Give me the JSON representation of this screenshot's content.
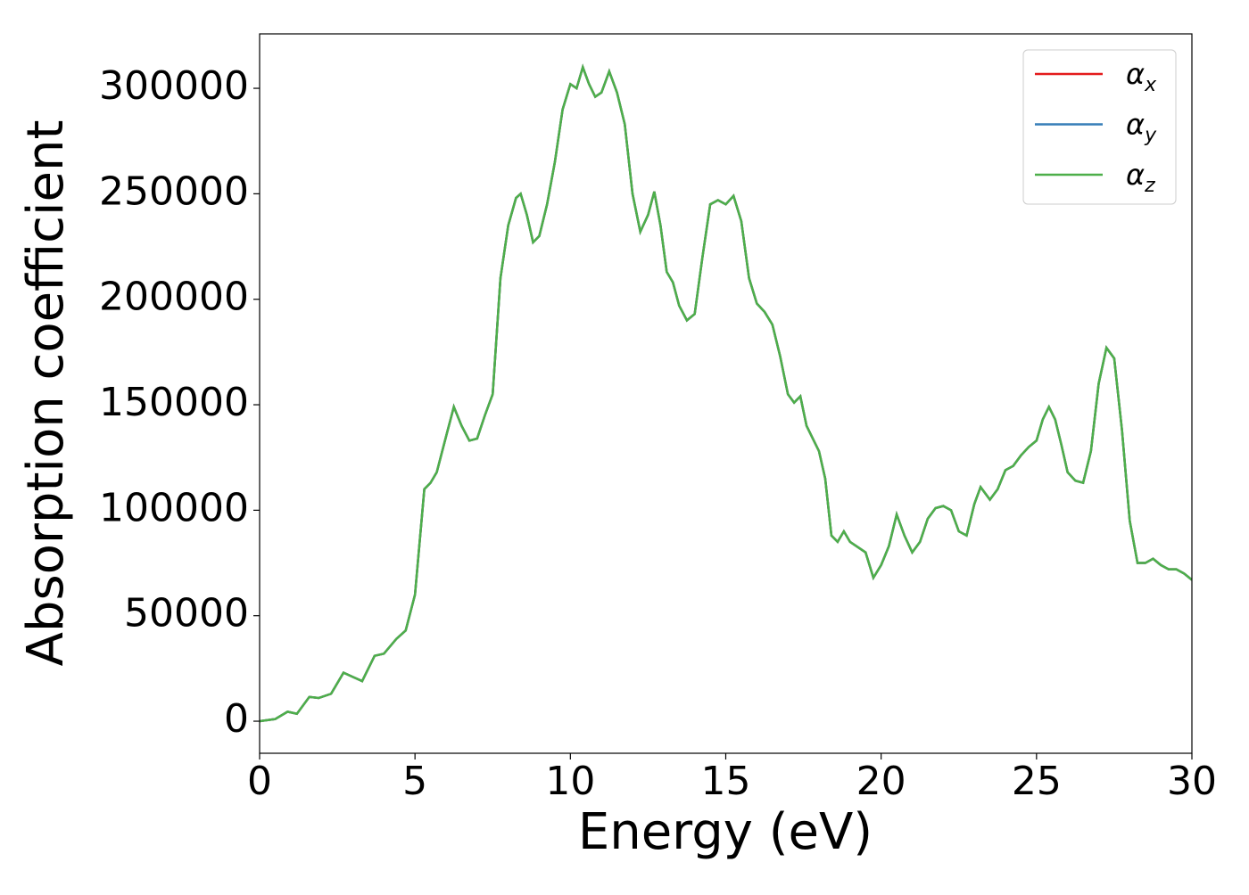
{
  "chart_data": {
    "type": "line",
    "xlabel": "Energy (eV)",
    "ylabel": "Absorption coefficient",
    "x": [
      0,
      0.5,
      0.9,
      1.2,
      1.6,
      1.9,
      2.3,
      2.7,
      3.0,
      3.3,
      3.7,
      4.0,
      4.4,
      4.7,
      5.0,
      5.3,
      5.5,
      5.7,
      6.0,
      6.25,
      6.5,
      6.75,
      7.0,
      7.25,
      7.5,
      7.75,
      8.0,
      8.25,
      8.4,
      8.6,
      8.8,
      9.0,
      9.25,
      9.5,
      9.75,
      10.0,
      10.2,
      10.4,
      10.6,
      10.8,
      11.0,
      11.25,
      11.5,
      11.75,
      12.0,
      12.25,
      12.5,
      12.7,
      12.9,
      13.1,
      13.3,
      13.5,
      13.75,
      14.0,
      14.25,
      14.5,
      14.75,
      15.0,
      15.25,
      15.5,
      15.75,
      16.0,
      16.25,
      16.5,
      16.75,
      17.0,
      17.2,
      17.4,
      17.6,
      17.8,
      18.0,
      18.2,
      18.4,
      18.6,
      18.8,
      19.0,
      19.3,
      19.5,
      19.75,
      20.0,
      20.25,
      20.5,
      20.75,
      21.0,
      21.25,
      21.5,
      21.75,
      22.0,
      22.25,
      22.5,
      22.75,
      23.0,
      23.2,
      23.5,
      23.75,
      24.0,
      24.25,
      24.5,
      24.75,
      25.0,
      25.2,
      25.4,
      25.6,
      25.8,
      26.0,
      26.25,
      26.5,
      26.75,
      27.0,
      27.25,
      27.5,
      27.75,
      28.0,
      28.25,
      28.5,
      28.75,
      29.0,
      29.25,
      29.5,
      29.75,
      30.0
    ],
    "series": [
      {
        "name": "αx",
        "color": "#e41a1c",
        "values": [
          0,
          1000,
          4500,
          3500,
          11500,
          11000,
          13000,
          23000,
          21000,
          19000,
          31000,
          32000,
          39000,
          43000,
          60000,
          110000,
          113000,
          118000,
          135000,
          149000,
          140000,
          133000,
          134000,
          145000,
          155000,
          210000,
          235000,
          248000,
          250000,
          240000,
          227000,
          230000,
          245000,
          265000,
          290000,
          302000,
          300000,
          310000,
          302000,
          296000,
          298000,
          308000,
          298000,
          283000,
          250000,
          232000,
          240000,
          251000,
          235000,
          213000,
          208000,
          197000,
          190000,
          193000,
          220000,
          245000,
          247000,
          245000,
          249000,
          237000,
          210000,
          198000,
          194000,
          188000,
          173000,
          155000,
          151000,
          154000,
          140000,
          134000,
          128000,
          115000,
          88000,
          85000,
          90000,
          85000,
          82000,
          80000,
          68000,
          74000,
          83000,
          98000,
          88000,
          80000,
          85000,
          96000,
          101000,
          102000,
          100000,
          90000,
          88000,
          103000,
          111000,
          105000,
          110000,
          119000,
          121000,
          126000,
          130000,
          133000,
          143000,
          149000,
          143000,
          131000,
          118000,
          114000,
          113000,
          128000,
          160000,
          177000,
          172000,
          138000,
          95000,
          75000,
          75000,
          77000,
          74000,
          72000,
          72000,
          70000,
          67000
        ]
      },
      {
        "name": "αy",
        "color": "#377eb8",
        "values": [
          0,
          1000,
          4500,
          3500,
          11500,
          11000,
          13000,
          23000,
          21000,
          19000,
          31000,
          32000,
          39000,
          43000,
          60000,
          110000,
          113000,
          118000,
          135000,
          149000,
          140000,
          133000,
          134000,
          145000,
          155000,
          210000,
          235000,
          248000,
          250000,
          240000,
          227000,
          230000,
          245000,
          265000,
          290000,
          302000,
          300000,
          310000,
          302000,
          296000,
          298000,
          308000,
          298000,
          283000,
          250000,
          232000,
          240000,
          251000,
          235000,
          213000,
          208000,
          197000,
          190000,
          193000,
          220000,
          245000,
          247000,
          245000,
          249000,
          237000,
          210000,
          198000,
          194000,
          188000,
          173000,
          155000,
          151000,
          154000,
          140000,
          134000,
          128000,
          115000,
          88000,
          85000,
          90000,
          85000,
          82000,
          80000,
          68000,
          74000,
          83000,
          98000,
          88000,
          80000,
          85000,
          96000,
          101000,
          102000,
          100000,
          90000,
          88000,
          103000,
          111000,
          105000,
          110000,
          119000,
          121000,
          126000,
          130000,
          133000,
          143000,
          149000,
          143000,
          131000,
          118000,
          114000,
          113000,
          128000,
          160000,
          177000,
          172000,
          138000,
          95000,
          75000,
          75000,
          77000,
          74000,
          72000,
          72000,
          70000,
          67000
        ]
      },
      {
        "name": "αz",
        "color": "#4daf4a",
        "values": [
          0,
          1000,
          4500,
          3500,
          11500,
          11000,
          13000,
          23000,
          21000,
          19000,
          31000,
          32000,
          39000,
          43000,
          60000,
          110000,
          113000,
          118000,
          135000,
          149000,
          140000,
          133000,
          134000,
          145000,
          155000,
          210000,
          235000,
          248000,
          250000,
          240000,
          227000,
          230000,
          245000,
          265000,
          290000,
          302000,
          300000,
          310000,
          302000,
          296000,
          298000,
          308000,
          298000,
          283000,
          250000,
          232000,
          240000,
          251000,
          235000,
          213000,
          208000,
          197000,
          190000,
          193000,
          220000,
          245000,
          247000,
          245000,
          249000,
          237000,
          210000,
          198000,
          194000,
          188000,
          173000,
          155000,
          151000,
          154000,
          140000,
          134000,
          128000,
          115000,
          88000,
          85000,
          90000,
          85000,
          82000,
          80000,
          68000,
          74000,
          83000,
          98000,
          88000,
          80000,
          85000,
          96000,
          101000,
          102000,
          100000,
          90000,
          88000,
          103000,
          111000,
          105000,
          110000,
          119000,
          121000,
          126000,
          130000,
          133000,
          143000,
          149000,
          143000,
          131000,
          118000,
          114000,
          113000,
          128000,
          160000,
          177000,
          172000,
          138000,
          95000,
          75000,
          75000,
          77000,
          74000,
          72000,
          72000,
          70000,
          67000
        ]
      }
    ],
    "xlim": [
      0,
      30
    ],
    "xticks": [
      0,
      5,
      10,
      15,
      20,
      25,
      30
    ],
    "ylim": [
      -15200,
      325800
    ],
    "yticks": [
      0,
      50000,
      100000,
      150000,
      200000,
      250000,
      300000
    ],
    "legend": "upper right"
  }
}
